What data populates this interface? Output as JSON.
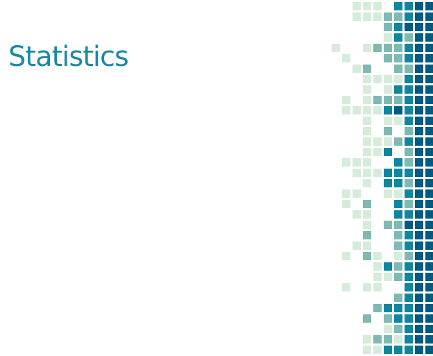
{
  "slide": {
    "title": "Statistics"
  },
  "theme": {
    "title_color": "#1a8aa0",
    "background": "#ffffff",
    "tile_colors": [
      "#d6ecdb",
      "#7fb9b4",
      "#0e86a0",
      "#035a80"
    ]
  }
}
